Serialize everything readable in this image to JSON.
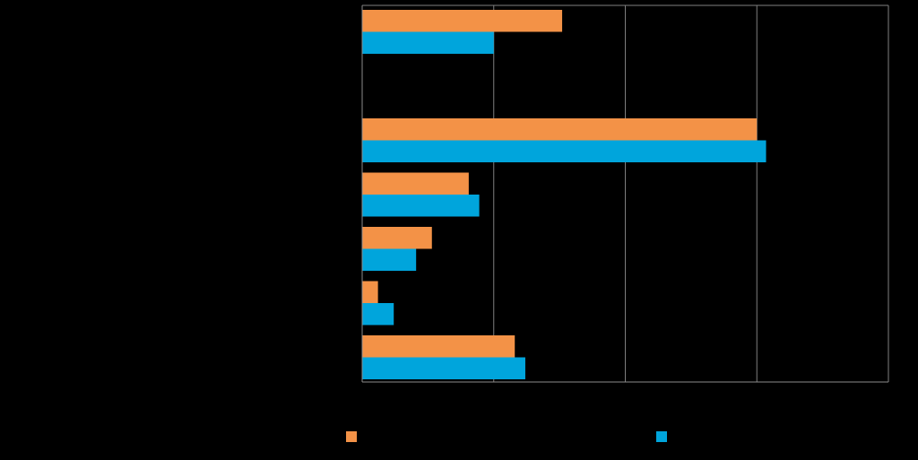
{
  "colors": {
    "background": "#000000",
    "series_a": "#F39247",
    "series_b": "#00A5DC",
    "grid": "#7f7f7f",
    "axis": "#8c8c8c"
  },
  "chart_data": {
    "type": "bar",
    "orientation": "horizontal",
    "title": "",
    "xlabel": "",
    "ylabel": "",
    "xlim": [
      0,
      40
    ],
    "x_gridlines": [
      10,
      20,
      30,
      40
    ],
    "grid": true,
    "legend_position": "bottom",
    "categories": [
      "",
      "",
      "",
      "",
      "",
      "",
      ""
    ],
    "series": [
      {
        "color": "#F39247",
        "values": [
          15.2,
          null,
          30.0,
          8.1,
          5.3,
          1.2,
          11.6
        ]
      },
      {
        "color": "#00A5DC",
        "values": [
          10.0,
          null,
          30.7,
          8.9,
          4.1,
          2.4,
          12.4
        ]
      }
    ]
  }
}
